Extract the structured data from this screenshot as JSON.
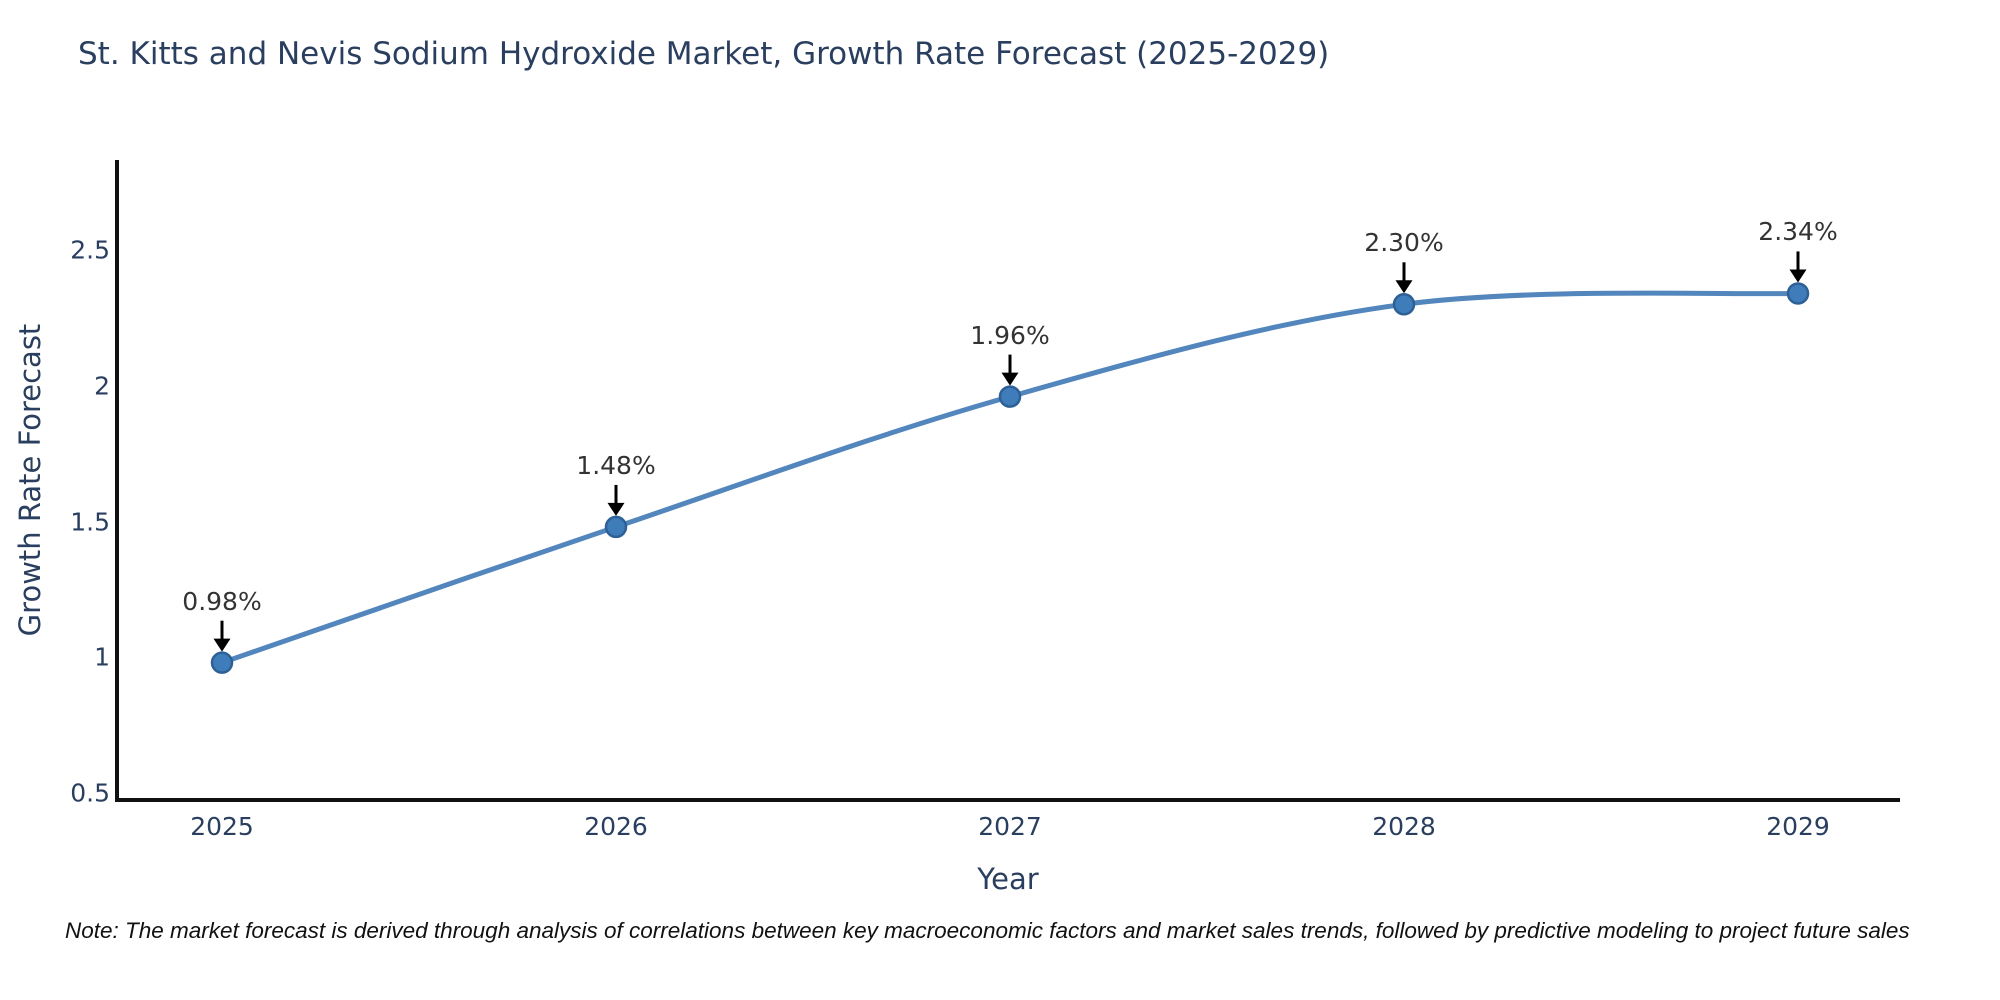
{
  "note": "Note: The market forecast is derived through analysis of correlations between key macroeconomic factors and market sales trends, followed by predictive modeling to project future sales",
  "chart_data": {
    "type": "line",
    "title": "St. Kitts and Nevis Sodium Hydroxide Market, Growth Rate Forecast (2025-2029)",
    "xlabel": "Year",
    "ylabel": "Growth Rate Forecast",
    "x": [
      2025,
      2026,
      2027,
      2028,
      2029
    ],
    "x_tick_labels": [
      "2025",
      "2026",
      "2027",
      "2028",
      "2029"
    ],
    "y_ticks": [
      0.5,
      1,
      1.5,
      2,
      2.5
    ],
    "y_tick_labels": [
      "0.5",
      "1",
      "1.5",
      "2",
      "2.5"
    ],
    "series": [
      {
        "name": "Growth Rate Forecast",
        "values": [
          0.98,
          1.48,
          1.96,
          2.3,
          2.34
        ]
      }
    ],
    "point_labels": [
      "0.98%",
      "1.48%",
      "1.96%",
      "2.30%",
      "2.34%"
    ],
    "line_shape": "spline",
    "markers": true,
    "grid": false,
    "legend": false,
    "ylim": [
      0.5,
      2.83
    ],
    "annotation_arrows": true
  },
  "colors": {
    "line": "#5286bd",
    "marker_fill": "#3f7cba",
    "marker_stroke": "#2e6096",
    "axis": "#111111",
    "text": "#2a3f5f",
    "annotation_text": "#333333",
    "arrow": "#000000"
  }
}
